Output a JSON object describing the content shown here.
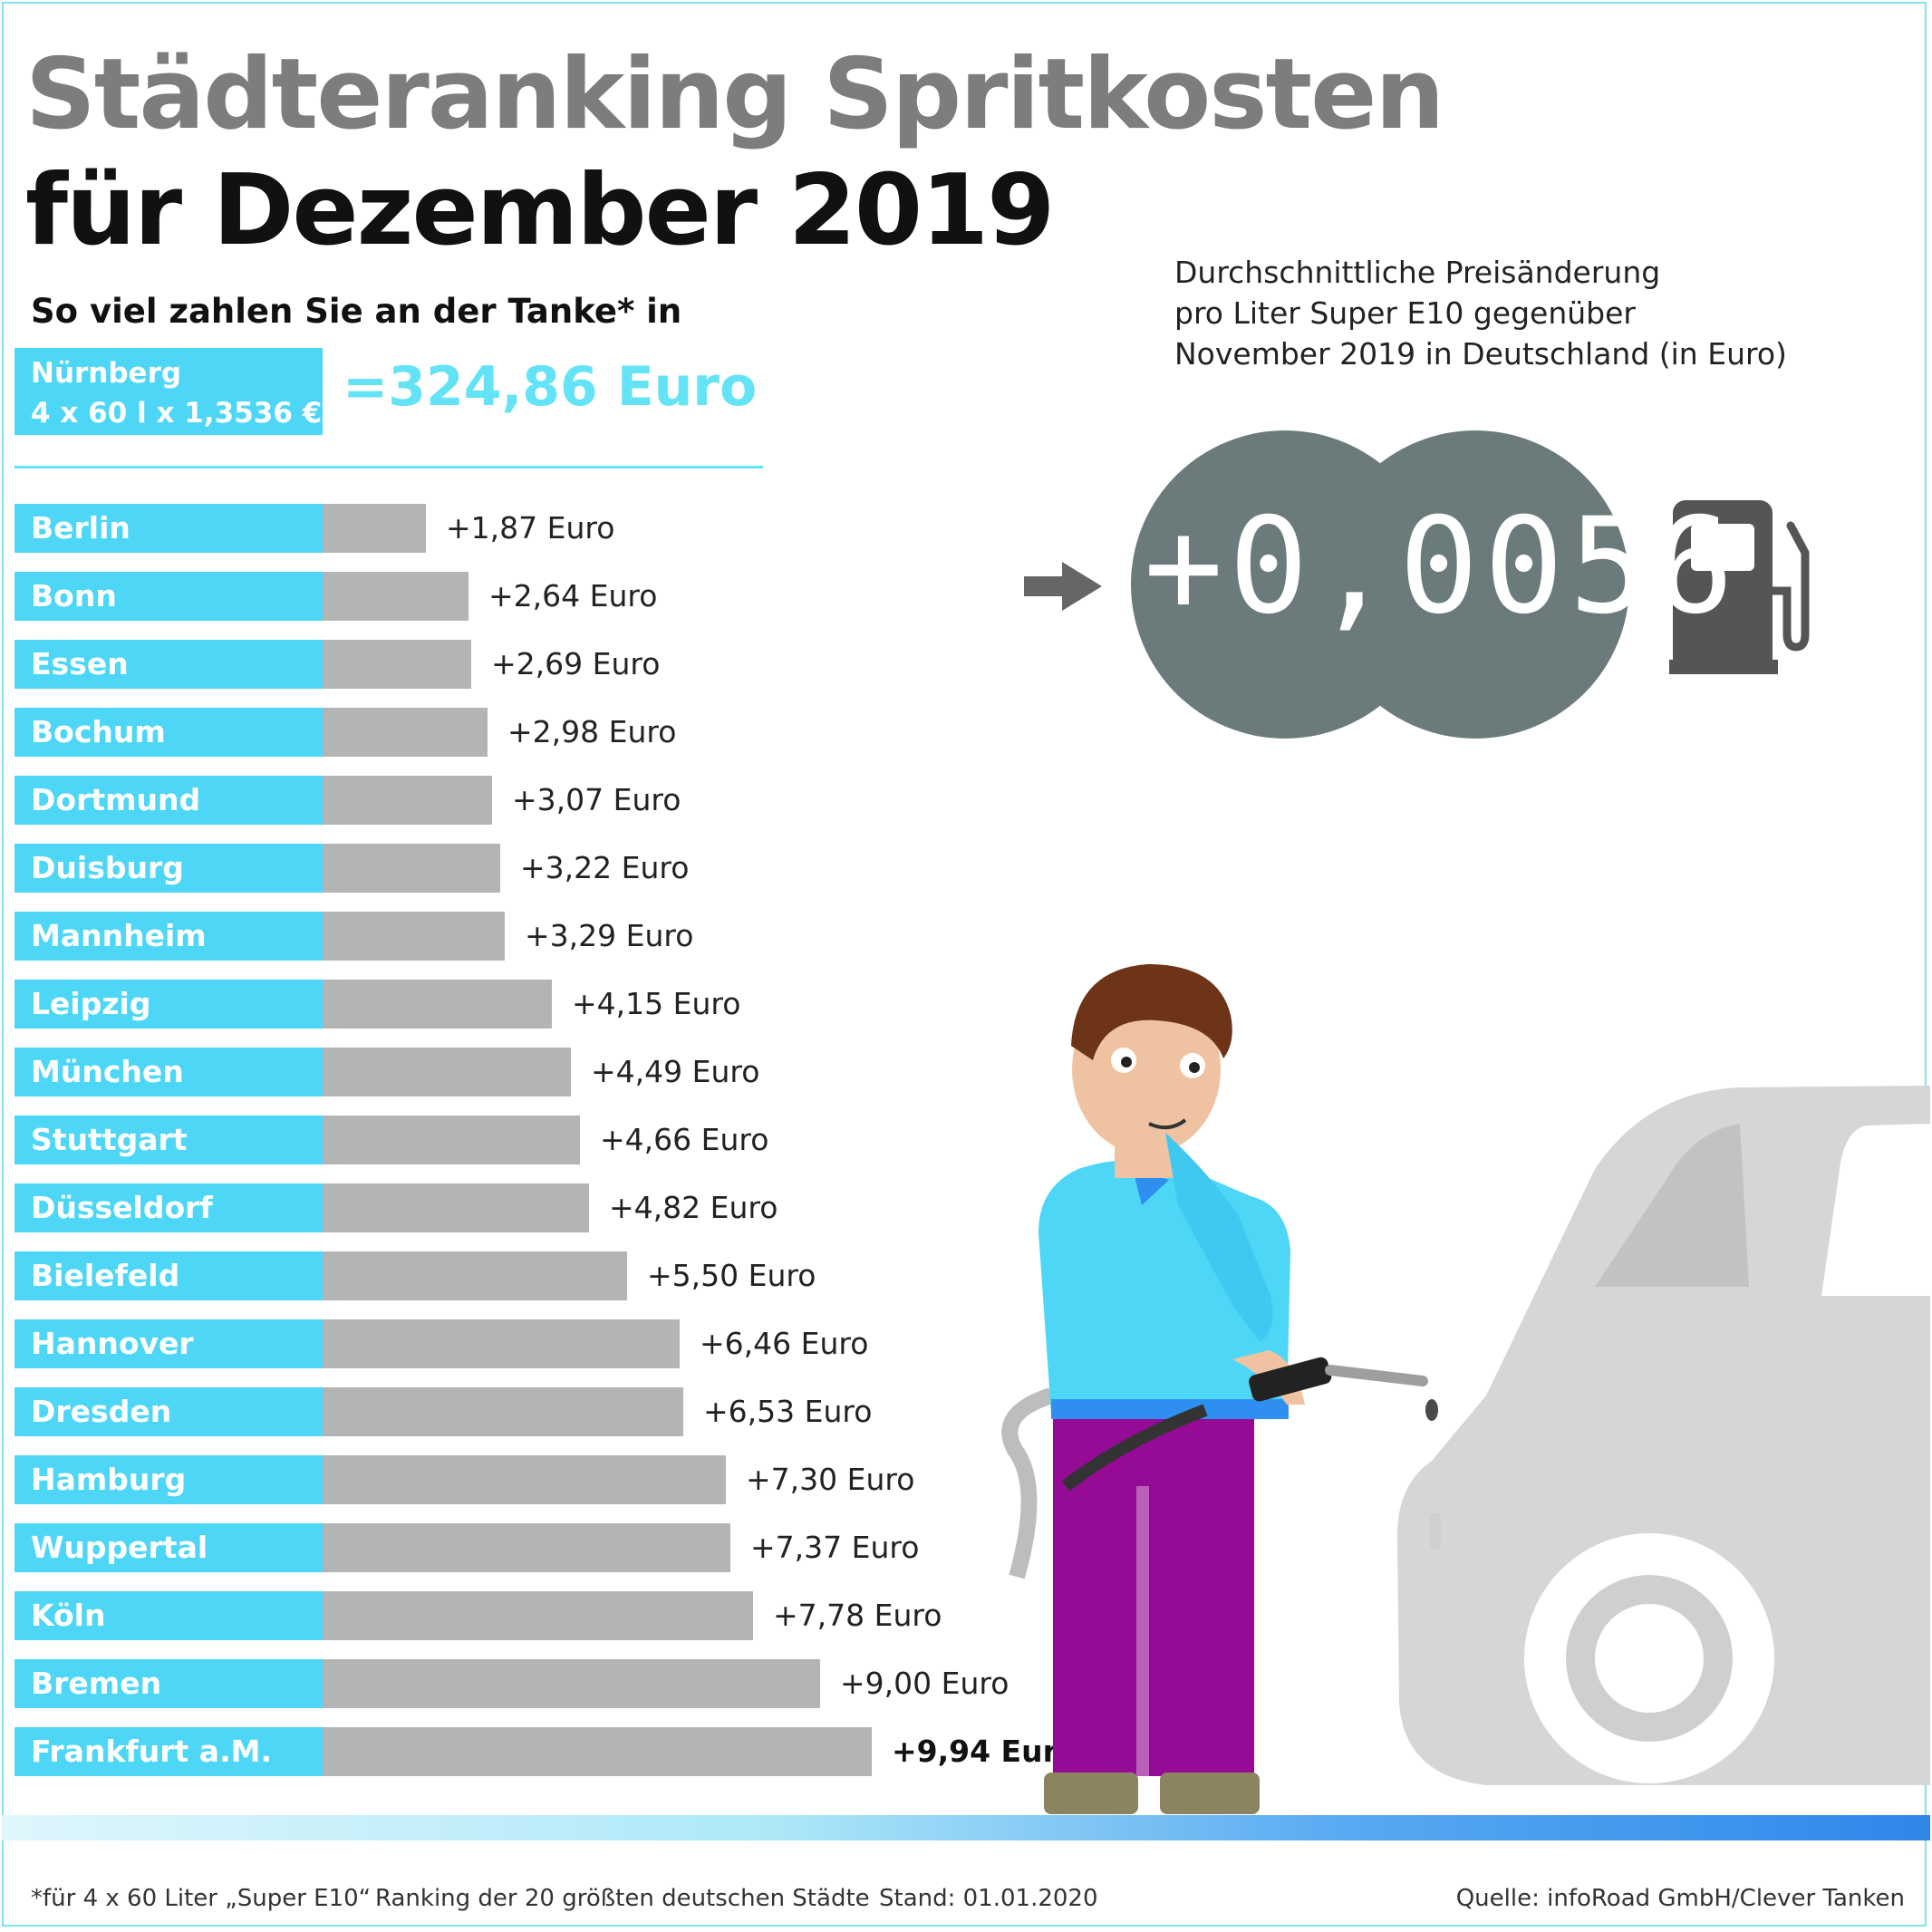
{
  "title_line1": "Städteranking Spritkosten",
  "title_line2": "für Dezember 2019",
  "subtitle": "So viel zahlen Sie an der Tanke* in",
  "reference": {
    "city": "Nürnberg",
    "formula": "4 x 60 l x 1,3536 €",
    "total": "=324,86 Euro"
  },
  "change_info": {
    "line1": "Durchschnittliche Preisänderung",
    "line2": "pro Liter Super E10 gegenüber",
    "line3": "November 2019 in Deutschland (in Euro)",
    "value": "+0,0056"
  },
  "chart_data": {
    "type": "bar",
    "orientation": "horizontal",
    "categories": [
      "Berlin",
      "Bonn",
      "Essen",
      "Bochum",
      "Dortmund",
      "Duisburg",
      "Mannheim",
      "Leipzig",
      "München",
      "Stuttgart",
      "Düsseldorf",
      "Bielefeld",
      "Hannover",
      "Dresden",
      "Hamburg",
      "Wuppertal",
      "Köln",
      "Bremen",
      "Frankfurt a.M."
    ],
    "values": [
      1.87,
      2.64,
      2.69,
      2.98,
      3.07,
      3.22,
      3.29,
      4.15,
      4.49,
      4.66,
      4.82,
      5.5,
      6.46,
      6.53,
      7.3,
      7.37,
      7.78,
      9.0,
      9.94
    ],
    "labels": [
      "+1,87 Euro",
      "+2,64 Euro",
      "+2,69 Euro",
      "+2,98 Euro",
      "+3,07 Euro",
      "+3,22 Euro",
      "+3,29 Euro",
      "+4,15 Euro",
      "+4,49 Euro",
      "+4,66 Euro",
      "+4,82 Euro",
      "+5,50 Euro",
      "+6,46 Euro",
      "+6,53 Euro",
      "+7,30 Euro",
      "+7,37 Euro",
      "+7,78 Euro",
      "+9,00 Euro",
      "+9,94 Euro"
    ],
    "colors": {
      "label_box": "#4dd6f5",
      "bar": "#b4b4b4"
    },
    "grid": false
  },
  "footer": {
    "note": "*für 4 x 60 Liter „Super E10“",
    "ranking": "Ranking der 20 größten deutschen Städte",
    "date": "Stand: 01.01.2020",
    "source": "Quelle: infoRoad GmbH/Clever Tanken"
  },
  "colors": {
    "accent_cyan": "#4dd6f5",
    "title_grey": "#7d7d7d",
    "circle_grey": "#6b7b7b"
  }
}
